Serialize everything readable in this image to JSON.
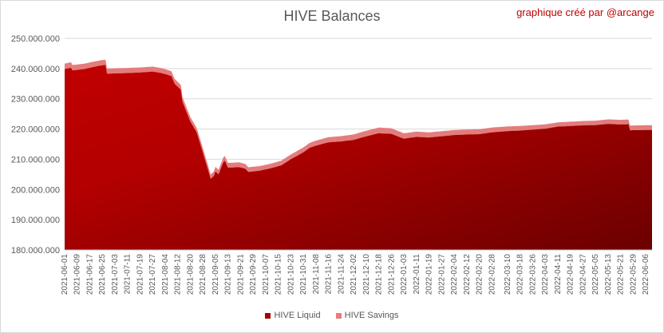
{
  "chart_data": {
    "type": "area",
    "stacked": true,
    "title": "HIVE Balances",
    "credit": "graphique créé par @arcange",
    "ylim": [
      180000000,
      250000000
    ],
    "y_ticks": [
      "180.000.000",
      "190.000.000",
      "200.000.000",
      "210.000.000",
      "220.000.000",
      "230.000.000",
      "240.000.000",
      "250.000.000"
    ],
    "y_tick_values": [
      180000000,
      190000000,
      200000000,
      210000000,
      220000000,
      230000000,
      240000000,
      250000000
    ],
    "grid": true,
    "legend_position": "bottom",
    "x_tick_labels": [
      "2021-06-01",
      "2021-06-09",
      "2021-06-17",
      "2021-06-25",
      "2021-07-03",
      "2021-07-11",
      "2021-07-19",
      "2021-07-27",
      "2021-08-04",
      "2021-08-12",
      "2021-08-20",
      "2021-08-28",
      "2021-09-05",
      "2021-09-13",
      "2021-09-21",
      "2021-09-29",
      "2021-10-07",
      "2021-10-15",
      "2021-10-23",
      "2021-10-31",
      "2021-11-08",
      "2021-11-16",
      "2021-11-24",
      "2021-12-02",
      "2021-12-10",
      "2021-12-18",
      "2021-12-26",
      "2022-01-03",
      "2022-01-11",
      "2022-01-19",
      "2022-01-27",
      "2022-02-04",
      "2022-02-12",
      "2022-02-20",
      "2022-02-28",
      "2022-03-10",
      "2022-03-18",
      "2022-03-26",
      "2022-04-03",
      "2022-04-11",
      "2022-04-19",
      "2022-04-27",
      "2022-05-05",
      "2022-05-13",
      "2022-05-21",
      "2022-05-29",
      "2022-06-06"
    ],
    "x_start": "2021-06-01",
    "x_end": "2022-06-10",
    "series": [
      {
        "name": "HIVE Liquid",
        "color": "#c00000",
        "points": [
          [
            "2021-06-01",
            239800000
          ],
          [
            "2021-06-05",
            240300000
          ],
          [
            "2021-06-06",
            239400000
          ],
          [
            "2021-06-13",
            239800000
          ],
          [
            "2021-06-20",
            240600000
          ],
          [
            "2021-06-25",
            241100000
          ],
          [
            "2021-06-27",
            241200000
          ],
          [
            "2021-06-28",
            238300000
          ],
          [
            "2021-07-10",
            238500000
          ],
          [
            "2021-07-19",
            238700000
          ],
          [
            "2021-07-27",
            239000000
          ],
          [
            "2021-08-01",
            238600000
          ],
          [
            "2021-08-04",
            238200000
          ],
          [
            "2021-08-08",
            237500000
          ],
          [
            "2021-08-10",
            235000000
          ],
          [
            "2021-08-14",
            233000000
          ],
          [
            "2021-08-15",
            229000000
          ],
          [
            "2021-08-20",
            222500000
          ],
          [
            "2021-08-24",
            219000000
          ],
          [
            "2021-08-27",
            214000000
          ],
          [
            "2021-08-31",
            207000000
          ],
          [
            "2021-09-02",
            203500000
          ],
          [
            "2021-09-04",
            204500000
          ],
          [
            "2021-09-05",
            206000000
          ],
          [
            "2021-09-07",
            205000000
          ],
          [
            "2021-09-10",
            209000000
          ],
          [
            "2021-09-11",
            209500000
          ],
          [
            "2021-09-13",
            207200000
          ],
          [
            "2021-09-20",
            207400000
          ],
          [
            "2021-09-24",
            206900000
          ],
          [
            "2021-09-26",
            205800000
          ],
          [
            "2021-10-03",
            206200000
          ],
          [
            "2021-10-10",
            207000000
          ],
          [
            "2021-10-17",
            208000000
          ],
          [
            "2021-10-23",
            210000000
          ],
          [
            "2021-10-31",
            212300000
          ],
          [
            "2021-11-04",
            213800000
          ],
          [
            "2021-11-08",
            214500000
          ],
          [
            "2021-11-16",
            215600000
          ],
          [
            "2021-11-24",
            215900000
          ],
          [
            "2021-12-02",
            216400000
          ],
          [
            "2021-12-10",
            217600000
          ],
          [
            "2021-12-18",
            218600000
          ],
          [
            "2021-12-26",
            218400000
          ],
          [
            "2022-01-03",
            216800000
          ],
          [
            "2022-01-11",
            217400000
          ],
          [
            "2022-01-19",
            217200000
          ],
          [
            "2022-01-27",
            217600000
          ],
          [
            "2022-02-04",
            218000000
          ],
          [
            "2022-02-12",
            218200000
          ],
          [
            "2022-02-20",
            218300000
          ],
          [
            "2022-02-28",
            218900000
          ],
          [
            "2022-03-10",
            219300000
          ],
          [
            "2022-03-18",
            219500000
          ],
          [
            "2022-03-26",
            219800000
          ],
          [
            "2022-04-03",
            220100000
          ],
          [
            "2022-04-11",
            220800000
          ],
          [
            "2022-04-19",
            221000000
          ],
          [
            "2022-04-27",
            221200000
          ],
          [
            "2022-05-05",
            221300000
          ],
          [
            "2022-05-13",
            221700000
          ],
          [
            "2022-05-21",
            221500000
          ],
          [
            "2022-05-26",
            221600000
          ],
          [
            "2022-05-27",
            219600000
          ],
          [
            "2022-06-10",
            219700000
          ]
        ]
      },
      {
        "name": "HIVE Savings",
        "color": "#e57c7c",
        "points": [
          [
            "2021-06-01",
            1800000
          ],
          [
            "2021-08-12",
            1600000
          ],
          [
            "2021-08-28",
            1400000
          ],
          [
            "2021-09-13",
            1600000
          ],
          [
            "2021-10-10",
            1500000
          ],
          [
            "2021-11-16",
            1700000
          ],
          [
            "2021-12-18",
            1900000
          ],
          [
            "2022-01-19",
            1700000
          ],
          [
            "2022-02-28",
            1600000
          ],
          [
            "2022-04-11",
            1400000
          ],
          [
            "2022-05-13",
            1500000
          ],
          [
            "2022-06-10",
            1600000
          ]
        ]
      }
    ]
  }
}
